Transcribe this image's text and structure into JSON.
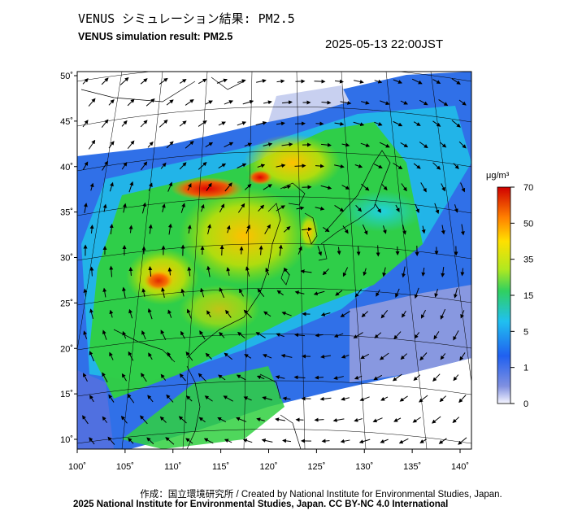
{
  "header": {
    "title_ja": "VENUS シミュレーション結果: PM2.5",
    "title_en": "VENUS simulation result: PM2.5",
    "timestamp": "2025-05-13 22:00JST"
  },
  "map": {
    "lat_ticks": [
      "50˚",
      "45˚",
      "40˚",
      "35˚",
      "30˚",
      "25˚",
      "20˚",
      "15˚",
      "10˚"
    ],
    "lon_ticks": [
      "100˚",
      "105˚",
      "110˚",
      "115˚",
      "120˚",
      "125˚",
      "130˚",
      "135˚",
      "140˚"
    ],
    "lat_values": [
      50,
      45,
      40,
      35,
      30,
      25,
      20,
      15,
      10
    ],
    "lon_values": [
      100,
      105,
      110,
      115,
      120,
      125,
      130,
      135,
      140
    ]
  },
  "colorbar": {
    "unit": "μg/m³",
    "ticks": [
      "70",
      "50",
      "35",
      "15",
      "5",
      "1",
      "0"
    ],
    "colors": [
      "#d00000",
      "#ff6000",
      "#ffc000",
      "#e0f000",
      "#30d030",
      "#30d0e0",
      "#2080f0",
      "#4060e0",
      "#8090e0",
      "#f0f0ff"
    ]
  },
  "footer": {
    "credit": "作成：国立環境研究所 / Created by National Institute for Environmental Studies, Japan.",
    "license": "2025 National Institute for Environmental Studies, Japan. CC BY-NC 4.0 International"
  }
}
